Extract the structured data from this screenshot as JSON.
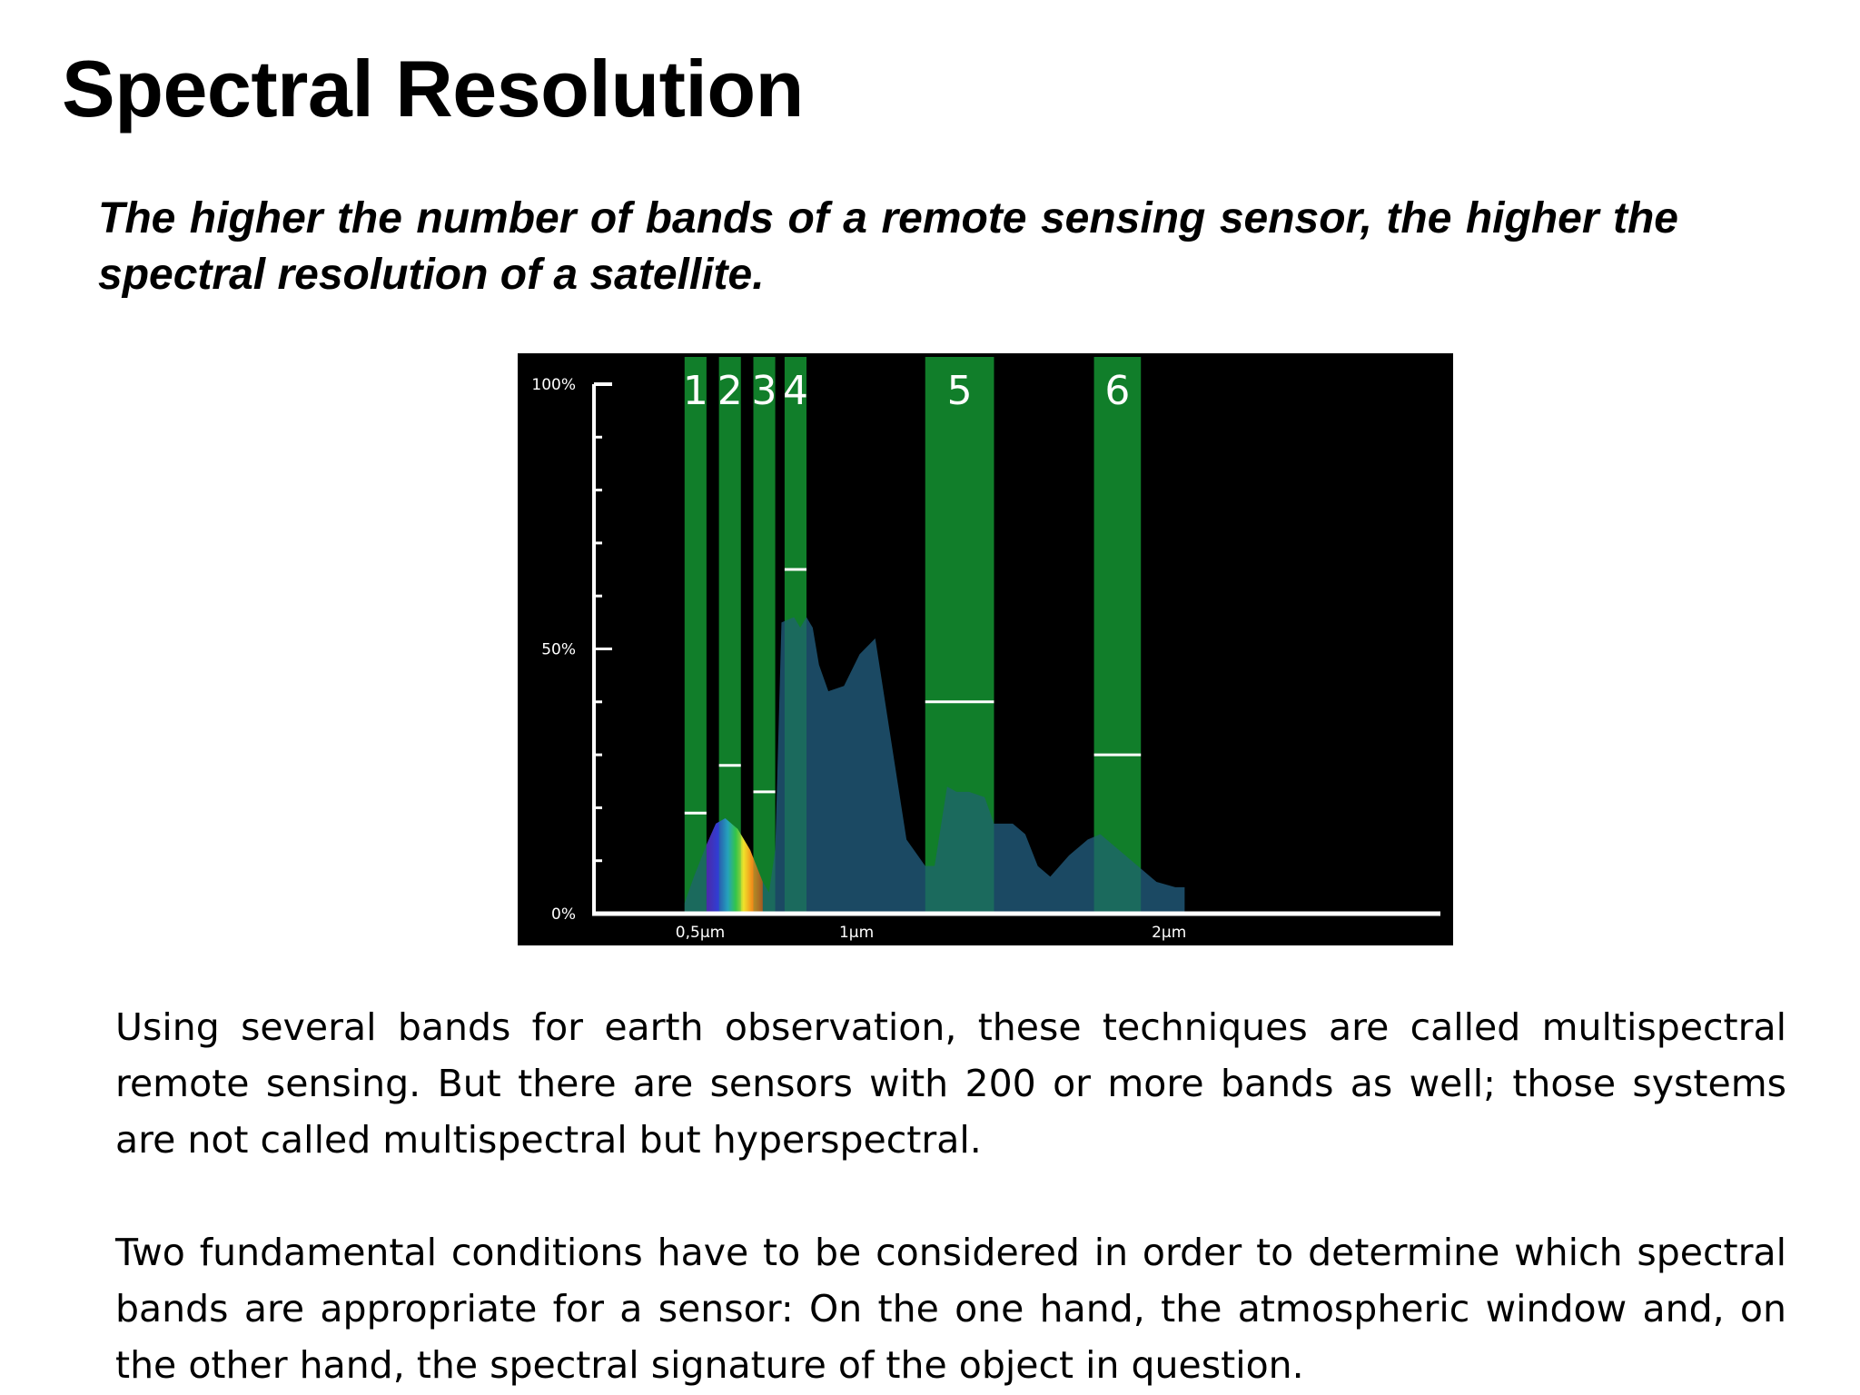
{
  "slide": {
    "title": "Spectral Resolution",
    "subtitle": "The higher the number of bands of a remote sensing sensor, the higher the spectral resolution of a satellite.",
    "paragraphs": [
      "Using several bands for earth observation, these techniques are called multispectral remote sensing. But there are sensors with 200 or more bands as well; those systems are not called multispectral but hyperspectral.",
      "Two fundamental conditions have to be considered in order to determine which spectral bands are appropriate for a sensor: On the one hand, the atmospheric window and, on the other hand, the spectral signature of the object in question."
    ]
  },
  "chart_data": {
    "type": "area",
    "title": "",
    "xlabel": "",
    "ylabel": "",
    "y_ticks": [
      {
        "label": "100%",
        "value": 100
      },
      {
        "label": "50%",
        "value": 50
      },
      {
        "label": "0%",
        "value": 0
      }
    ],
    "x_ticks": [
      {
        "label": "0,5μm",
        "value": 0.5
      },
      {
        "label": "1μm",
        "value": 1.0
      },
      {
        "label": "2μm",
        "value": 2.0
      }
    ],
    "xlim": [
      0.16,
      2.88
    ],
    "ylim": [
      0,
      100
    ],
    "grid": false,
    "colors": {
      "background": "#000000",
      "band": "#0e6e1e",
      "signature": "#1d4f6b",
      "axis": "#ffffff"
    },
    "bands": [
      {
        "label": "1",
        "x_start": 0.45,
        "x_end": 0.52,
        "level": 19
      },
      {
        "label": "2",
        "x_start": 0.56,
        "x_end": 0.63,
        "level": 28
      },
      {
        "label": "3",
        "x_start": 0.67,
        "x_end": 0.74,
        "level": 23
      },
      {
        "label": "4",
        "x_start": 0.77,
        "x_end": 0.84,
        "level": 65
      },
      {
        "label": "5",
        "x_start": 1.22,
        "x_end": 1.44,
        "level": 40
      },
      {
        "label": "6",
        "x_start": 1.76,
        "x_end": 1.91,
        "level": 30
      }
    ],
    "signature": {
      "x": [
        0.45,
        0.48,
        0.52,
        0.55,
        0.58,
        0.62,
        0.66,
        0.69,
        0.72,
        0.74,
        0.76,
        0.8,
        0.82,
        0.84,
        0.86,
        0.88,
        0.91,
        0.96,
        1.01,
        1.06,
        1.11,
        1.16,
        1.22,
        1.25,
        1.29,
        1.32,
        1.36,
        1.41,
        1.44,
        1.47,
        1.5,
        1.54,
        1.58,
        1.62,
        1.68,
        1.74,
        1.78,
        1.84,
        1.9,
        1.96,
        2.02,
        2.05
      ],
      "y": [
        2,
        7,
        13,
        17,
        18,
        16,
        12,
        7,
        4,
        12,
        55,
        56,
        54,
        56,
        54,
        47,
        42,
        43,
        49,
        52,
        33,
        14,
        9,
        9,
        24,
        23,
        23,
        22,
        17,
        17,
        17,
        15,
        9,
        7,
        11,
        14,
        15,
        12,
        9,
        6,
        5,
        5
      ]
    }
  }
}
